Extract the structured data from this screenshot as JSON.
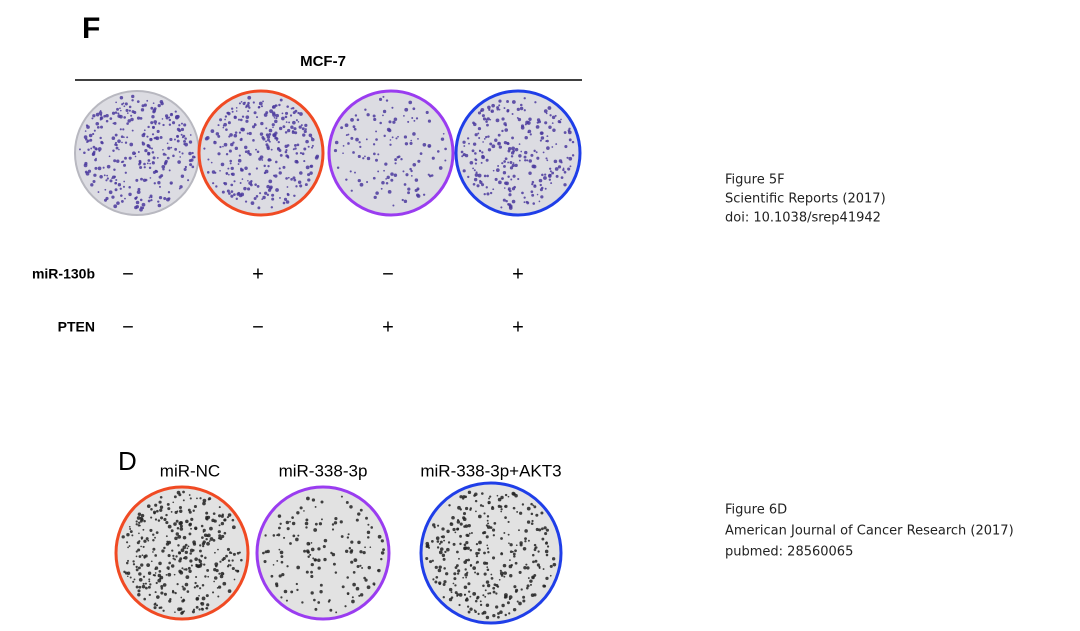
{
  "panel_f": {
    "label": "F",
    "cell_line": "MCF-7",
    "rows": [
      {
        "label": "miR-130b",
        "signs": [
          "−",
          "+",
          "−",
          "+"
        ]
      },
      {
        "label": "PTEN",
        "signs": [
          "−",
          "−",
          "+",
          "+"
        ]
      }
    ],
    "caption": [
      "Figure 5F",
      "Scientific Reports (2017)",
      "doi: 10.1038/srep41942"
    ]
  },
  "panel_d": {
    "label": "D",
    "groups": [
      "miR-NC",
      "miR-338-3p",
      "miR-338-3p+AKT3"
    ],
    "caption": [
      "Figure 6D",
      "American Journal of Cancer Research (2017)",
      "pubmed: 28560065"
    ]
  }
}
